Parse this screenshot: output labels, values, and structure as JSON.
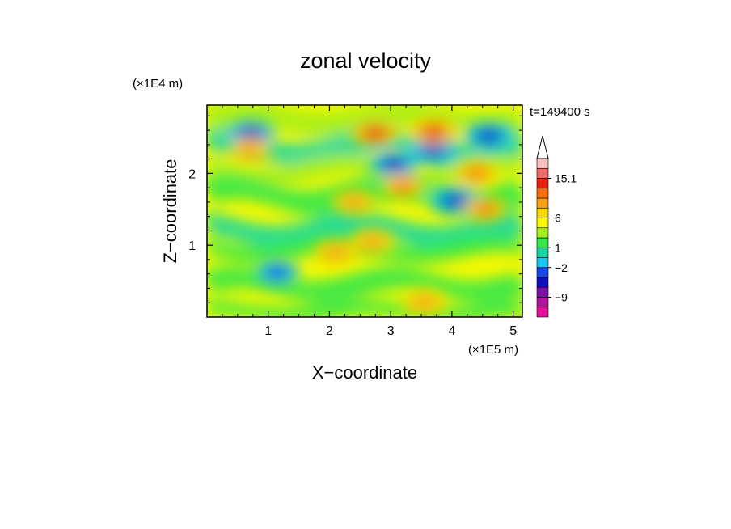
{
  "chart_data": {
    "type": "heatmap",
    "title": "zonal velocity",
    "xlabel": "X−coordinate",
    "ylabel": "Z−coordinate",
    "x_scale_label": "(×1E5 m)",
    "y_scale_label": "(×1E4 m)",
    "time_label": "t=149400 s",
    "xlim": [
      0,
      5.15
    ],
    "ylim": [
      0,
      2.95
    ],
    "x_ticks": [
      1,
      2,
      3,
      4,
      5
    ],
    "x_tick_labels": [
      "1",
      "2",
      "3",
      "4",
      "5"
    ],
    "y_ticks": [
      1,
      2
    ],
    "y_tick_labels": [
      "1",
      "2"
    ],
    "colorbar": {
      "levels": [
        -15,
        -12,
        -9,
        -6,
        -4,
        -2,
        -1,
        0,
        1,
        2,
        4,
        6,
        9,
        12,
        15.1
      ],
      "colors": [
        "#e8109c",
        "#b0169c",
        "#7a10a8",
        "#1010c0",
        "#1a46e8",
        "#14c8ee",
        "#18d8a0",
        "#38e848",
        "#a8ee18",
        "#f8f800",
        "#f8d800",
        "#f8a018",
        "#f87010",
        "#e82010",
        "#f06a6a",
        "#f8c0c0"
      ],
      "tick_labels": [
        "15.1",
        "6",
        "1",
        "−2",
        "−9"
      ]
    },
    "features": [
      {
        "x": 4.6,
        "z": 2.52,
        "value": -9
      },
      {
        "x": 3.05,
        "z": 2.13,
        "value": -9
      },
      {
        "x": 3.7,
        "z": 2.33,
        "value": -9
      },
      {
        "x": 4.05,
        "z": 1.62,
        "value": -9
      },
      {
        "x": 0.72,
        "z": 2.55,
        "value": -9
      },
      {
        "x": 2.75,
        "z": 2.55,
        "value": 9
      },
      {
        "x": 3.7,
        "z": 2.58,
        "value": 9
      },
      {
        "x": 4.4,
        "z": 2.0,
        "value": 6
      },
      {
        "x": 3.2,
        "z": 1.82,
        "value": 6
      },
      {
        "x": 2.4,
        "z": 1.6,
        "value": 4
      },
      {
        "x": 4.55,
        "z": 1.5,
        "value": 6
      },
      {
        "x": 0.7,
        "z": 2.32,
        "value": 4
      },
      {
        "x": 2.7,
        "z": 1.05,
        "value": 4
      },
      {
        "x": 2.1,
        "z": 0.9,
        "value": 4
      },
      {
        "x": 1.15,
        "z": 0.62,
        "value": -6
      },
      {
        "x": 3.55,
        "z": 0.2,
        "value": 4
      }
    ]
  }
}
